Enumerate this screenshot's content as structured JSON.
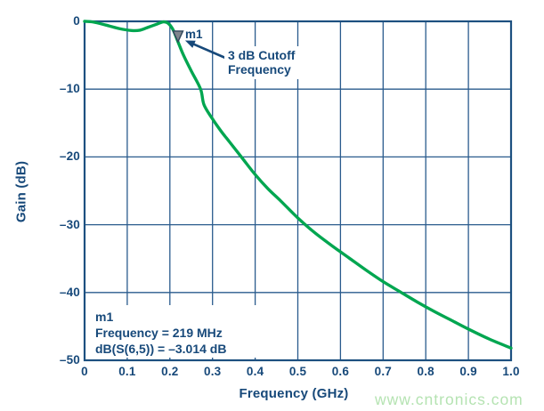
{
  "watermark": {
    "text": "www.cntronics.com",
    "color": "#b5e3b2"
  },
  "colors": {
    "grid": "#2a5b8d",
    "border": "#1d5080",
    "text": "#17497a",
    "curve": "#00a650",
    "marker_fill": "#80868d",
    "marker_stroke": "#31475c",
    "arrow": "#17497a"
  },
  "chart_data": {
    "type": "line",
    "title": "",
    "xlabel": "Frequency (GHz)",
    "ylabel": "Gain (dB)",
    "xlim": [
      0,
      1.0
    ],
    "ylim": [
      -50,
      0
    ],
    "grid": true,
    "x_tick_values": [
      0,
      0.1,
      0.2,
      0.3,
      0.4,
      0.5,
      0.6,
      0.7,
      0.8,
      0.9,
      1.0
    ],
    "x_tick_labels": [
      "0",
      "0.1",
      "0.2",
      "0.3",
      "0.4",
      "0.5",
      "0.6",
      "0.7",
      "0.8",
      "0.9",
      "1.0"
    ],
    "y_tick_values": [
      0,
      -10,
      -20,
      -30,
      -40,
      -50
    ],
    "y_tick_labels": [
      "0",
      "–10",
      "–20",
      "–30",
      "–40",
      "–50"
    ],
    "series": [
      {
        "name": "dB(S(6,5))",
        "color": "#00a650",
        "points": [
          [
            0.0,
            0.0
          ],
          [
            0.02,
            -0.1
          ],
          [
            0.05,
            -0.55
          ],
          [
            0.08,
            -1.05
          ],
          [
            0.11,
            -1.35
          ],
          [
            0.13,
            -1.3
          ],
          [
            0.15,
            -0.85
          ],
          [
            0.17,
            -0.4
          ],
          [
            0.185,
            -0.08
          ],
          [
            0.197,
            -0.35
          ],
          [
            0.208,
            -1.3
          ],
          [
            0.219,
            -3.014
          ],
          [
            0.232,
            -5.0
          ],
          [
            0.25,
            -7.3
          ],
          [
            0.272,
            -10.0
          ],
          [
            0.28,
            -12.3
          ],
          [
            0.3,
            -14.4
          ],
          [
            0.32,
            -16.2
          ],
          [
            0.34,
            -17.8
          ],
          [
            0.37,
            -20.2
          ],
          [
            0.4,
            -22.6
          ],
          [
            0.43,
            -24.7
          ],
          [
            0.46,
            -26.5
          ],
          [
            0.5,
            -29.0
          ],
          [
            0.54,
            -31.2
          ],
          [
            0.58,
            -33.1
          ],
          [
            0.62,
            -34.9
          ],
          [
            0.66,
            -36.7
          ],
          [
            0.7,
            -38.4
          ],
          [
            0.74,
            -39.9
          ],
          [
            0.78,
            -41.4
          ],
          [
            0.82,
            -42.8
          ],
          [
            0.86,
            -44.1
          ],
          [
            0.9,
            -45.4
          ],
          [
            0.95,
            -46.9
          ],
          [
            1.0,
            -48.2
          ]
        ]
      }
    ],
    "marker": {
      "id": "m1",
      "label": "m1",
      "x": 0.219,
      "y": -3.014
    },
    "annotation": {
      "lines": [
        "3 dB Cutoff",
        "Frequency"
      ]
    },
    "info_box": {
      "lines": [
        "m1",
        "Frequency = 219 MHz",
        "dB(S(6,5)) = –3.014 dB"
      ]
    }
  }
}
